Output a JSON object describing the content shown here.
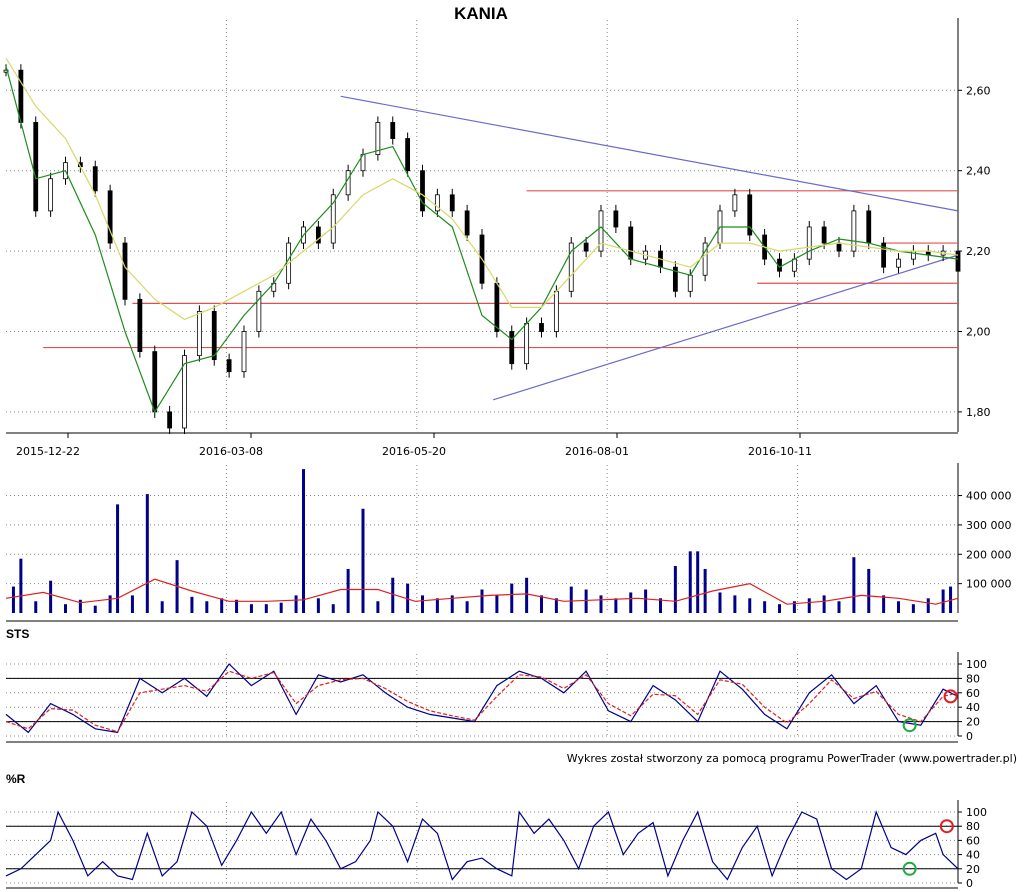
{
  "chart_data": [
    {
      "type": "candlestick",
      "title": "KANIA",
      "x_tick_labels": [
        "2015-12-22",
        "2016-03-08",
        "2016-05-20",
        "2016-08-01",
        "2016-10-11"
      ],
      "y_tick_labels": [
        "2,60",
        "2,40",
        "2,20",
        "2,00",
        "1,80"
      ],
      "ylim": [
        1.75,
        2.75
      ],
      "grid": true,
      "series": [
        {
          "kind": "close-path-approx",
          "color": "#000000",
          "x": [
            0,
            4,
            8,
            12,
            16,
            20,
            24,
            28,
            32,
            36,
            40,
            44,
            48,
            52,
            56,
            60,
            64,
            68,
            72,
            76,
            80,
            84,
            88,
            92,
            96,
            100,
            104,
            108,
            112,
            116,
            120,
            124,
            128,
            132,
            136,
            140,
            144,
            148,
            152,
            156,
            160,
            164,
            168,
            172,
            176,
            180,
            184,
            188,
            192,
            196,
            200,
            204,
            208,
            212,
            216,
            220,
            224,
            228,
            232,
            236,
            240,
            244,
            248,
            252,
            256
          ],
          "values": [
            2.65,
            2.52,
            2.3,
            2.38,
            2.42,
            2.41,
            2.35,
            2.22,
            2.08,
            1.95,
            1.8,
            1.76,
            1.94,
            2.05,
            1.93,
            1.9,
            2.0,
            2.1,
            2.12,
            2.22,
            2.26,
            2.22,
            2.34,
            2.4,
            2.44,
            2.52,
            2.48,
            2.4,
            2.3,
            2.34,
            2.3,
            2.24,
            2.12,
            2.0,
            1.92,
            2.02,
            2.0,
            2.1,
            2.22,
            2.2,
            2.3,
            2.26,
            2.18,
            2.2,
            2.16,
            2.1,
            2.14,
            2.22,
            2.3,
            2.34,
            2.24,
            2.18,
            2.15,
            2.18,
            2.26,
            2.22,
            2.2,
            2.3,
            2.22,
            2.16,
            2.18,
            2.2,
            2.19,
            2.2,
            2.15
          ]
        },
        {
          "kind": "moving-average-fast",
          "color": "#1e8c1e",
          "x": [
            0,
            8,
            16,
            24,
            32,
            40,
            48,
            56,
            64,
            72,
            80,
            88,
            96,
            104,
            112,
            120,
            128,
            136,
            144,
            152,
            160,
            168,
            176,
            184,
            192,
            200,
            208,
            216,
            224,
            232,
            240,
            248,
            256
          ],
          "values": [
            2.66,
            2.38,
            2.4,
            2.24,
            2.0,
            1.8,
            1.92,
            1.94,
            2.04,
            2.12,
            2.24,
            2.32,
            2.44,
            2.46,
            2.32,
            2.26,
            2.04,
            1.98,
            2.06,
            2.2,
            2.26,
            2.18,
            2.16,
            2.14,
            2.26,
            2.26,
            2.16,
            2.2,
            2.23,
            2.22,
            2.2,
            2.19,
            2.18
          ]
        },
        {
          "kind": "moving-average-slow",
          "color": "#d8d86a",
          "x": [
            0,
            8,
            16,
            24,
            32,
            40,
            48,
            56,
            64,
            72,
            80,
            88,
            96,
            104,
            112,
            120,
            128,
            136,
            144,
            152,
            160,
            168,
            176,
            184,
            192,
            200,
            208,
            216,
            224,
            232,
            240,
            248,
            256
          ],
          "values": [
            2.68,
            2.56,
            2.48,
            2.34,
            2.16,
            2.08,
            2.03,
            2.06,
            2.1,
            2.14,
            2.2,
            2.26,
            2.34,
            2.38,
            2.34,
            2.28,
            2.18,
            2.06,
            2.06,
            2.14,
            2.22,
            2.2,
            2.18,
            2.16,
            2.22,
            2.22,
            2.2,
            2.21,
            2.22,
            2.21,
            2.2,
            2.2,
            2.19
          ]
        }
      ],
      "horizontal_levels": [
        {
          "value": 2.35,
          "x_from": 140,
          "x_to": 256,
          "color": "#e05050"
        },
        {
          "value": 2.22,
          "x_from": 236,
          "x_to": 256,
          "color": "#e05050"
        },
        {
          "value": 2.12,
          "x_from": 202,
          "x_to": 256,
          "color": "#e05050"
        },
        {
          "value": 2.07,
          "x_from": 34,
          "x_to": 256,
          "color": "#e05050"
        },
        {
          "value": 1.96,
          "x_from": 10,
          "x_to": 256,
          "color": "#e05050"
        }
      ],
      "trend_lines": [
        {
          "from": [
            90,
            2.585
          ],
          "to": [
            256,
            2.3
          ],
          "color": "#6a6acc"
        },
        {
          "from": [
            131,
            1.83
          ],
          "to": [
            256,
            2.19
          ],
          "color": "#6a6acc"
        }
      ]
    },
    {
      "type": "bar",
      "title": "",
      "y_tick_labels": [
        "400 000",
        "300 000",
        "200 000",
        "100 000"
      ],
      "ylim": [
        0,
        470000
      ],
      "series": [
        {
          "kind": "volume",
          "color": "#00008b",
          "x": [
            2,
            4,
            8,
            12,
            16,
            20,
            24,
            28,
            30,
            34,
            38,
            42,
            46,
            50,
            54,
            58,
            62,
            66,
            70,
            74,
            78,
            80,
            84,
            88,
            92,
            96,
            100,
            104,
            108,
            112,
            116,
            120,
            124,
            128,
            132,
            136,
            140,
            144,
            148,
            152,
            156,
            160,
            164,
            168,
            172,
            176,
            180,
            184,
            186,
            188,
            192,
            196,
            200,
            204,
            208,
            212,
            216,
            220,
            224,
            228,
            232,
            236,
            240,
            244,
            248,
            252,
            254
          ],
          "values": [
            90000,
            185000,
            40000,
            110000,
            30000,
            45000,
            25000,
            60000,
            370000,
            60000,
            405000,
            40000,
            180000,
            55000,
            40000,
            50000,
            45000,
            30000,
            30000,
            35000,
            60000,
            490000,
            50000,
            30000,
            150000,
            355000,
            40000,
            120000,
            100000,
            60000,
            50000,
            60000,
            40000,
            80000,
            60000,
            100000,
            120000,
            60000,
            50000,
            90000,
            80000,
            60000,
            50000,
            70000,
            80000,
            50000,
            160000,
            210000,
            210000,
            150000,
            70000,
            60000,
            50000,
            40000,
            30000,
            40000,
            50000,
            60000,
            40000,
            190000,
            150000,
            60000,
            40000,
            30000,
            50000,
            80000,
            90000
          ]
        },
        {
          "kind": "volume-average",
          "color": "#e02020",
          "x": [
            0,
            10,
            20,
            30,
            40,
            50,
            60,
            70,
            80,
            90,
            100,
            110,
            120,
            130,
            140,
            150,
            160,
            170,
            180,
            190,
            200,
            210,
            220,
            230,
            240,
            250,
            256
          ],
          "values": [
            50000,
            70000,
            35000,
            50000,
            115000,
            75000,
            40000,
            40000,
            45000,
            80000,
            80000,
            40000,
            50000,
            60000,
            65000,
            40000,
            45000,
            50000,
            40000,
            75000,
            100000,
            30000,
            40000,
            60000,
            50000,
            30000,
            50000
          ]
        }
      ]
    },
    {
      "type": "line",
      "title": "STS",
      "y_tick_labels": [
        "100",
        "80",
        "60",
        "40",
        "20",
        "0"
      ],
      "ylim": [
        0,
        100
      ],
      "reference_lines": [
        20,
        80
      ],
      "series": [
        {
          "kind": "main",
          "color": "#00008b",
          "x": [
            0,
            6,
            12,
            18,
            24,
            30,
            36,
            42,
            48,
            54,
            60,
            66,
            72,
            78,
            84,
            90,
            96,
            102,
            108,
            114,
            120,
            126,
            132,
            138,
            144,
            150,
            156,
            162,
            168,
            174,
            180,
            186,
            192,
            198,
            204,
            210,
            216,
            222,
            228,
            234,
            240,
            246,
            252,
            256
          ],
          "values": [
            30,
            5,
            45,
            30,
            10,
            5,
            80,
            60,
            80,
            55,
            100,
            70,
            90,
            30,
            85,
            75,
            85,
            60,
            40,
            30,
            25,
            20,
            70,
            90,
            80,
            60,
            90,
            35,
            20,
            70,
            50,
            20,
            90,
            65,
            30,
            10,
            60,
            85,
            45,
            70,
            20,
            15,
            65,
            55
          ]
        },
        {
          "kind": "signal",
          "color": "#e02020",
          "x": [
            0,
            6,
            12,
            18,
            24,
            30,
            36,
            42,
            48,
            54,
            60,
            66,
            72,
            78,
            84,
            90,
            96,
            102,
            108,
            114,
            120,
            126,
            132,
            138,
            144,
            150,
            156,
            162,
            168,
            174,
            180,
            186,
            192,
            198,
            204,
            210,
            216,
            222,
            228,
            234,
            240,
            246,
            252,
            256
          ],
          "values": [
            20,
            10,
            38,
            36,
            15,
            6,
            60,
            65,
            70,
            62,
            90,
            80,
            88,
            45,
            70,
            78,
            80,
            66,
            48,
            35,
            28,
            22,
            55,
            85,
            82,
            66,
            85,
            45,
            28,
            58,
            56,
            30,
            78,
            72,
            40,
            18,
            45,
            78,
            52,
            62,
            30,
            20,
            55,
            60
          ]
        }
      ],
      "markers": [
        {
          "x": 243,
          "value": 15,
          "color": "#22aa44",
          "kind": "buy"
        },
        {
          "x": 254,
          "value": 55,
          "color": "#e02020",
          "kind": "sell"
        }
      ]
    },
    {
      "type": "line",
      "title": "%R",
      "y_tick_labels": [
        "100",
        "80",
        "60",
        "40",
        "20",
        "0"
      ],
      "ylim": [
        0,
        100
      ],
      "reference_lines": [
        20,
        80
      ],
      "series": [
        {
          "kind": "main",
          "color": "#00008b",
          "x": [
            0,
            4,
            8,
            12,
            14,
            18,
            22,
            26,
            30,
            34,
            38,
            42,
            46,
            50,
            54,
            58,
            62,
            66,
            70,
            74,
            78,
            82,
            86,
            90,
            94,
            98,
            100,
            104,
            108,
            112,
            116,
            120,
            124,
            128,
            132,
            136,
            138,
            142,
            146,
            150,
            154,
            158,
            162,
            166,
            170,
            174,
            178,
            182,
            186,
            190,
            194,
            198,
            202,
            206,
            210,
            214,
            218,
            222,
            226,
            230,
            234,
            238,
            242,
            246,
            250,
            252,
            256
          ],
          "values": [
            10,
            20,
            40,
            60,
            100,
            60,
            10,
            30,
            10,
            5,
            70,
            10,
            30,
            100,
            80,
            25,
            60,
            100,
            70,
            100,
            40,
            90,
            60,
            20,
            30,
            60,
            100,
            80,
            30,
            90,
            70,
            5,
            30,
            35,
            20,
            10,
            100,
            70,
            90,
            60,
            20,
            80,
            100,
            40,
            70,
            85,
            10,
            60,
            100,
            30,
            5,
            50,
            80,
            10,
            60,
            100,
            90,
            20,
            5,
            20,
            100,
            50,
            40,
            60,
            70,
            40,
            20
          ]
        }
      ],
      "markers": [
        {
          "x": 243,
          "value": 20,
          "color": "#22aa44",
          "kind": "buy"
        },
        {
          "x": 253,
          "value": 80,
          "color": "#e02020",
          "kind": "sell"
        }
      ]
    }
  ],
  "credit": "Wykres został stworzony za pomocą programu PowerTrader (www.powertrader.pl)"
}
